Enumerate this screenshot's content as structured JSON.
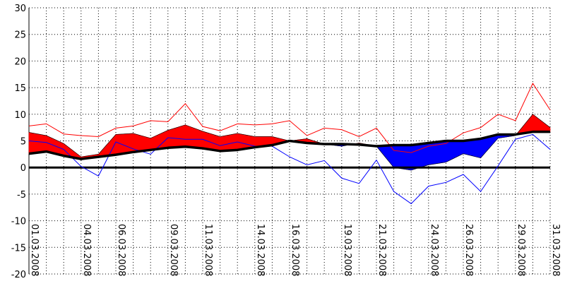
{
  "chart_data": {
    "type": "area",
    "title": "",
    "xlabel": "",
    "ylabel": "",
    "ylim": [
      -20,
      30
    ],
    "yticks": [
      -20,
      -15,
      -10,
      -5,
      0,
      5,
      10,
      15,
      20,
      25,
      30
    ],
    "x_tick_labels": [
      {
        "label": "01.03.2008",
        "day": 1
      },
      {
        "label": "04.03.2008",
        "day": 4
      },
      {
        "label": "06.03.2008",
        "day": 6
      },
      {
        "label": "09.03.2008",
        "day": 9
      },
      {
        "label": "11.03.2008",
        "day": 11
      },
      {
        "label": "14.03.2008",
        "day": 14
      },
      {
        "label": "16.03.2008",
        "day": 16
      },
      {
        "label": "19.03.2008",
        "day": 19
      },
      {
        "label": "21.03.2008",
        "day": 21
      },
      {
        "label": "24.03.2008",
        "day": 24
      },
      {
        "label": "26.03.2008",
        "day": 26
      },
      {
        "label": "29.03.2008",
        "day": 29
      },
      {
        "label": "31.03.2008",
        "day": 31
      }
    ],
    "days": [
      1,
      2,
      3,
      4,
      5,
      6,
      7,
      8,
      9,
      10,
      11,
      12,
      13,
      14,
      15,
      16,
      17,
      18,
      19,
      20,
      21,
      22,
      23,
      24,
      25,
      26,
      27,
      28,
      29,
      30,
      31
    ],
    "grid": true,
    "colors": {
      "above": "#ff0000",
      "below": "#0000ff",
      "baseline": "#000000",
      "zero": "#000000",
      "grid": "#000000"
    },
    "series": [
      {
        "role": "mean",
        "color": "#ff0000",
        "values": [
          6.6,
          6.0,
          4.5,
          2.0,
          2.5,
          6.2,
          6.4,
          5.5,
          7.0,
          8.0,
          6.8,
          5.8,
          6.4,
          5.8,
          5.8,
          5.0,
          5.4,
          4.4,
          4.0,
          4.6,
          4.0,
          0.0,
          -0.5,
          0.5,
          1.0,
          2.6,
          1.8,
          5.5,
          6.0,
          10.0,
          7.5
        ]
      },
      {
        "role": "baseline",
        "color": "#000000",
        "values": [
          2.6,
          3.0,
          2.2,
          1.6,
          2.0,
          2.4,
          2.9,
          3.3,
          3.7,
          3.9,
          3.6,
          3.1,
          3.3,
          3.8,
          4.2,
          5.0,
          4.6,
          4.4,
          4.4,
          4.3,
          4.0,
          4.2,
          4.2,
          4.6,
          5.0,
          5.0,
          5.4,
          6.2,
          6.2,
          6.7,
          6.7
        ]
      },
      {
        "role": "max",
        "color": "#ff0000",
        "values": [
          7.8,
          8.2,
          6.3,
          6.0,
          5.8,
          7.4,
          7.8,
          8.8,
          8.6,
          12.0,
          7.7,
          6.9,
          8.2,
          8.0,
          8.2,
          8.8,
          6.0,
          7.4,
          7.1,
          5.8,
          7.4,
          3.2,
          2.8,
          4.0,
          4.5,
          6.5,
          7.5,
          10.0,
          8.8,
          15.8,
          10.8
        ]
      },
      {
        "role": "min",
        "color": "#0000ff",
        "values": [
          5.0,
          4.7,
          3.4,
          0.2,
          -1.6,
          4.8,
          3.5,
          2.5,
          5.6,
          5.3,
          5.3,
          4.1,
          4.8,
          4.0,
          4.0,
          2.0,
          0.5,
          1.3,
          -2.0,
          -3.0,
          1.4,
          -4.5,
          -6.8,
          -3.5,
          -2.8,
          -1.3,
          -4.5,
          0.3,
          5.3,
          6.2,
          3.4
        ]
      }
    ]
  }
}
